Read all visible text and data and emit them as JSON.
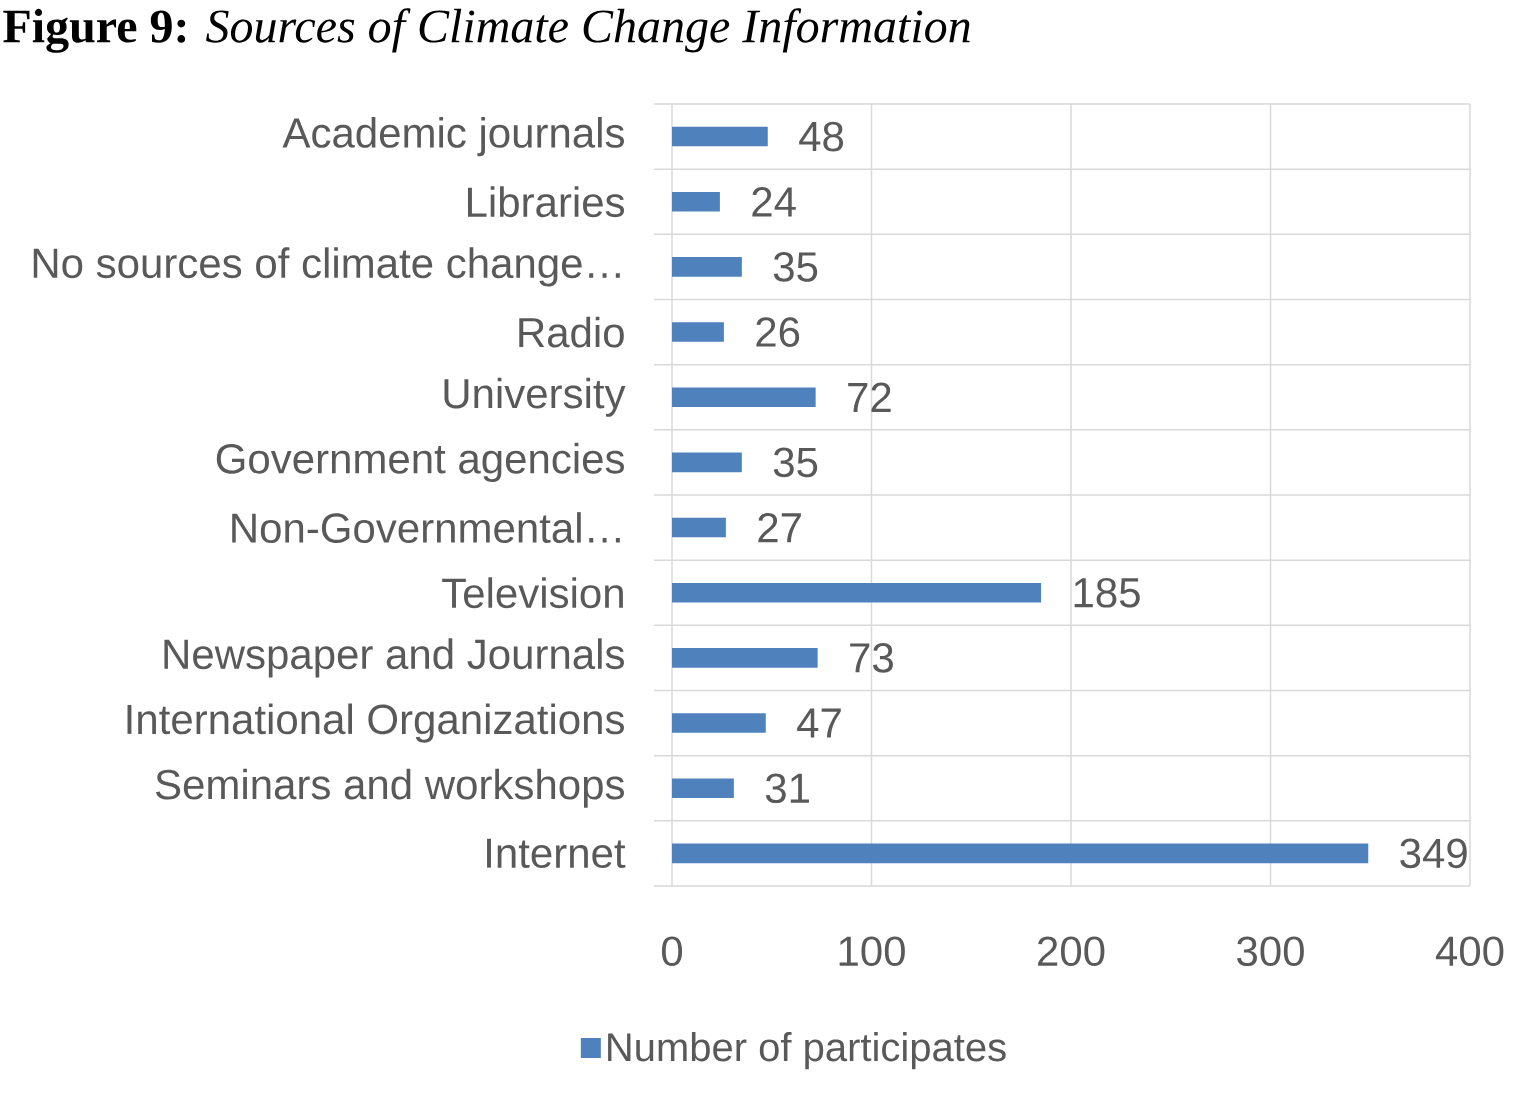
{
  "chart_data": {
    "type": "bar",
    "orientation": "horizontal",
    "title": "**Figure 9:** *Sources of Climate Change Information*",
    "categories": [
      "Academic journals",
      "Libraries",
      "No sources of climate change…",
      "Radio",
      "University",
      "Government agencies",
      "Non-Governmental…",
      "Television",
      "Newspaper and Journals",
      "International Organizations",
      "Seminars and workshops",
      "Internet"
    ],
    "series": [
      {
        "name": "Number of participates",
        "color": "#4f81bd",
        "values": [
          48,
          24,
          35,
          26,
          72,
          35,
          27,
          185,
          73,
          47,
          31,
          349
        ]
      }
    ],
    "xlim": [
      0,
      400
    ],
    "xticks": [
      0,
      100,
      200,
      300,
      400
    ],
    "grid": true,
    "legend": "bottom",
    "data_labels": true
  }
}
